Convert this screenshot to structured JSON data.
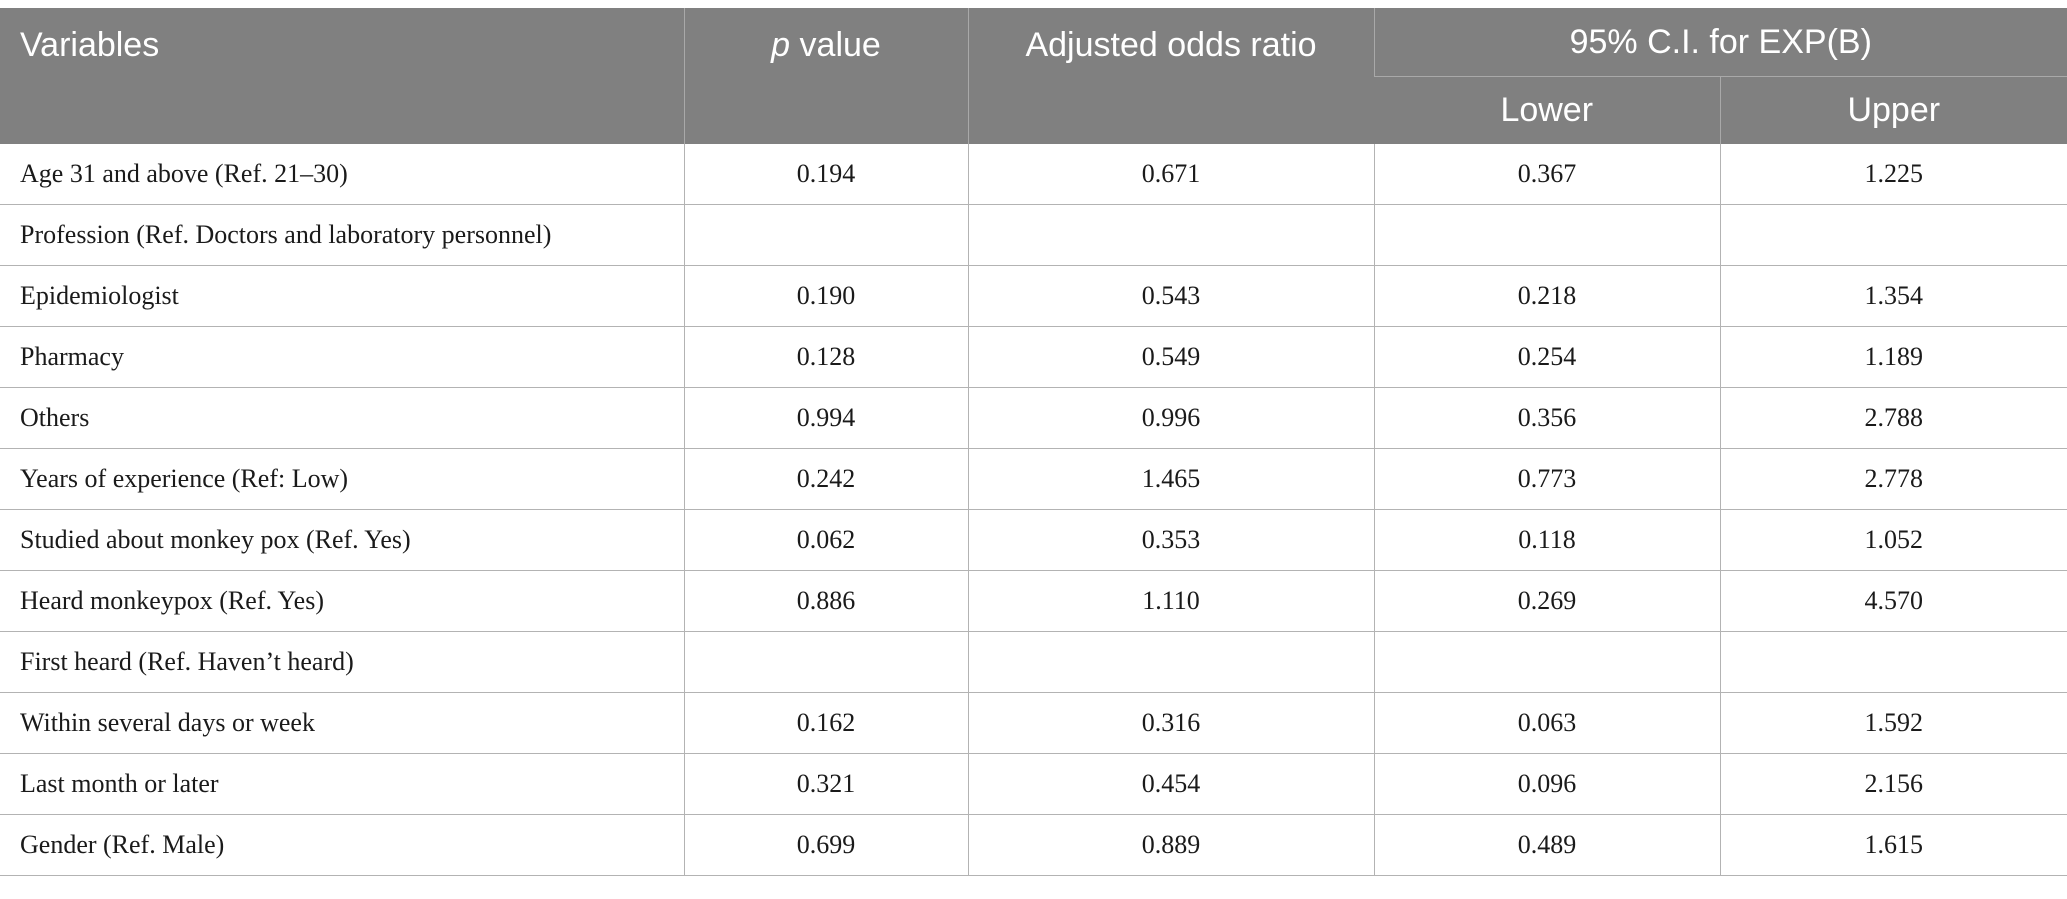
{
  "header": {
    "variables": "Variables",
    "p_value_italic": "p",
    "p_value_rest": " value",
    "adjusted_odds_ratio": "Adjusted odds ratio",
    "ci_group": "95% C.I. for EXP(B)",
    "lower": "Lower",
    "upper": "Upper"
  },
  "rows": [
    {
      "variable": "Age 31 and above (Ref. 21–30)",
      "p": "0.194",
      "aor": "0.671",
      "lower": "0.367",
      "upper": "1.225"
    },
    {
      "variable": "Profession (Ref. Doctors and laboratory personnel)",
      "p": "",
      "aor": "",
      "lower": "",
      "upper": ""
    },
    {
      "variable": "Epidemiologist",
      "p": "0.190",
      "aor": "0.543",
      "lower": "0.218",
      "upper": "1.354"
    },
    {
      "variable": "Pharmacy",
      "p": "0.128",
      "aor": "0.549",
      "lower": "0.254",
      "upper": "1.189"
    },
    {
      "variable": "Others",
      "p": "0.994",
      "aor": "0.996",
      "lower": "0.356",
      "upper": "2.788"
    },
    {
      "variable": "Years of experience (Ref: Low)",
      "p": "0.242",
      "aor": "1.465",
      "lower": "0.773",
      "upper": "2.778"
    },
    {
      "variable": "Studied about monkey pox (Ref. Yes)",
      "p": "0.062",
      "aor": "0.353",
      "lower": "0.118",
      "upper": "1.052"
    },
    {
      "variable": "Heard monkeypox (Ref. Yes)",
      "p": "0.886",
      "aor": "1.110",
      "lower": "0.269",
      "upper": "4.570"
    },
    {
      "variable": "First heard (Ref. Haven’t heard)",
      "p": "",
      "aor": "",
      "lower": "",
      "upper": ""
    },
    {
      "variable": "Within several days or week",
      "p": "0.162",
      "aor": "0.316",
      "lower": "0.063",
      "upper": "1.592"
    },
    {
      "variable": "Last month or later",
      "p": "0.321",
      "aor": "0.454",
      "lower": "0.096",
      "upper": "2.156"
    },
    {
      "variable": "Gender (Ref. Male)",
      "p": "0.699",
      "aor": "0.889",
      "lower": "0.489",
      "upper": "1.615"
    }
  ]
}
